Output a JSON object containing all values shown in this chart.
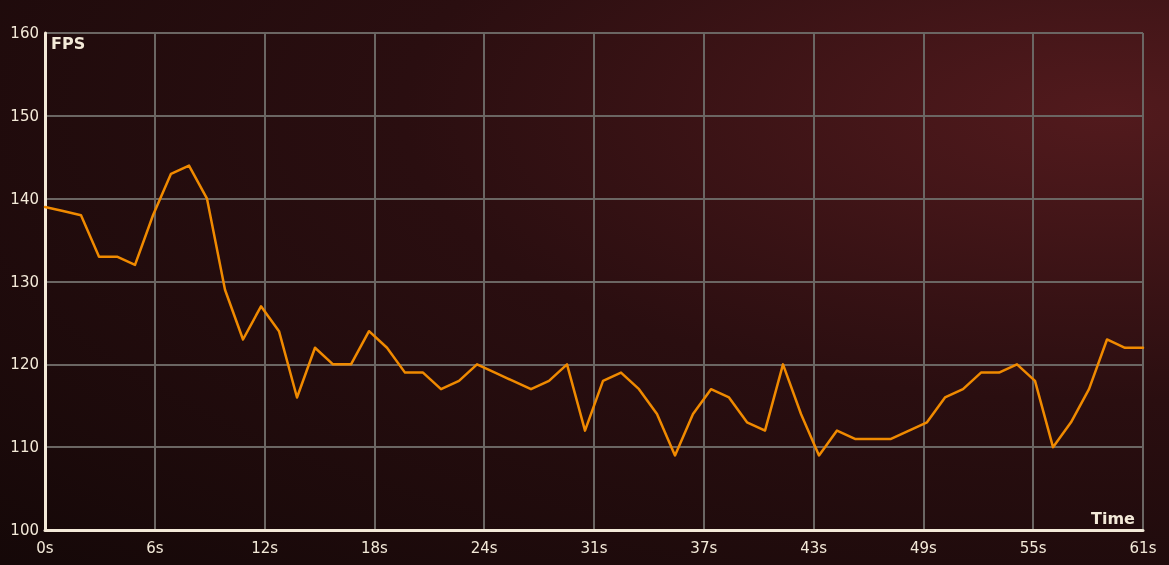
{
  "chart_data": {
    "type": "line",
    "xlabel": "Time",
    "ylabel": "FPS",
    "x": [
      0,
      1,
      2,
      3,
      4,
      5,
      6,
      7,
      8,
      9,
      10,
      11,
      12,
      13,
      14,
      15,
      16,
      17,
      18,
      19,
      20,
      21,
      22,
      23,
      24,
      25,
      26,
      27,
      28,
      29,
      30,
      31,
      32,
      33,
      34,
      35,
      36,
      37,
      38,
      39,
      40,
      41,
      42,
      43,
      44,
      45,
      46,
      47,
      48,
      49,
      50,
      51,
      52,
      53,
      54,
      55,
      56,
      57,
      58,
      59,
      60,
      61
    ],
    "series": [
      {
        "color": "#f08a00",
        "values": [
          139,
          138.5,
          138,
          133,
          133,
          132,
          138,
          143,
          144,
          140,
          129,
          123,
          127,
          124,
          116,
          122,
          120,
          120,
          124,
          122,
          119,
          119,
          117,
          118,
          120,
          119,
          118,
          117,
          118,
          120,
          112,
          118,
          119,
          117,
          114,
          109,
          114,
          117,
          116,
          113,
          112,
          120,
          114,
          109,
          112,
          111,
          111,
          111,
          112,
          113,
          116,
          117,
          119,
          119,
          120,
          118,
          110,
          113,
          117,
          123,
          122,
          122
        ]
      }
    ],
    "xlim": [
      0,
      61
    ],
    "xticks": [
      {
        "value": 0,
        "label": "0s"
      },
      {
        "value": 6.1,
        "label": "6s"
      },
      {
        "value": 12.2,
        "label": "12s"
      },
      {
        "value": 18.3,
        "label": "18s"
      },
      {
        "value": 24.4,
        "label": "24s"
      },
      {
        "value": 30.5,
        "label": "31s"
      },
      {
        "value": 36.6,
        "label": "37s"
      },
      {
        "value": 42.7,
        "label": "43s"
      },
      {
        "value": 48.8,
        "label": "49s"
      },
      {
        "value": 54.9,
        "label": "55s"
      },
      {
        "value": 61,
        "label": "61s"
      }
    ],
    "ylim": [
      100,
      160
    ],
    "yticks": [
      100,
      110,
      120,
      130,
      140,
      150,
      160
    ],
    "grid": true,
    "marker": "none",
    "line_style": "solid"
  }
}
